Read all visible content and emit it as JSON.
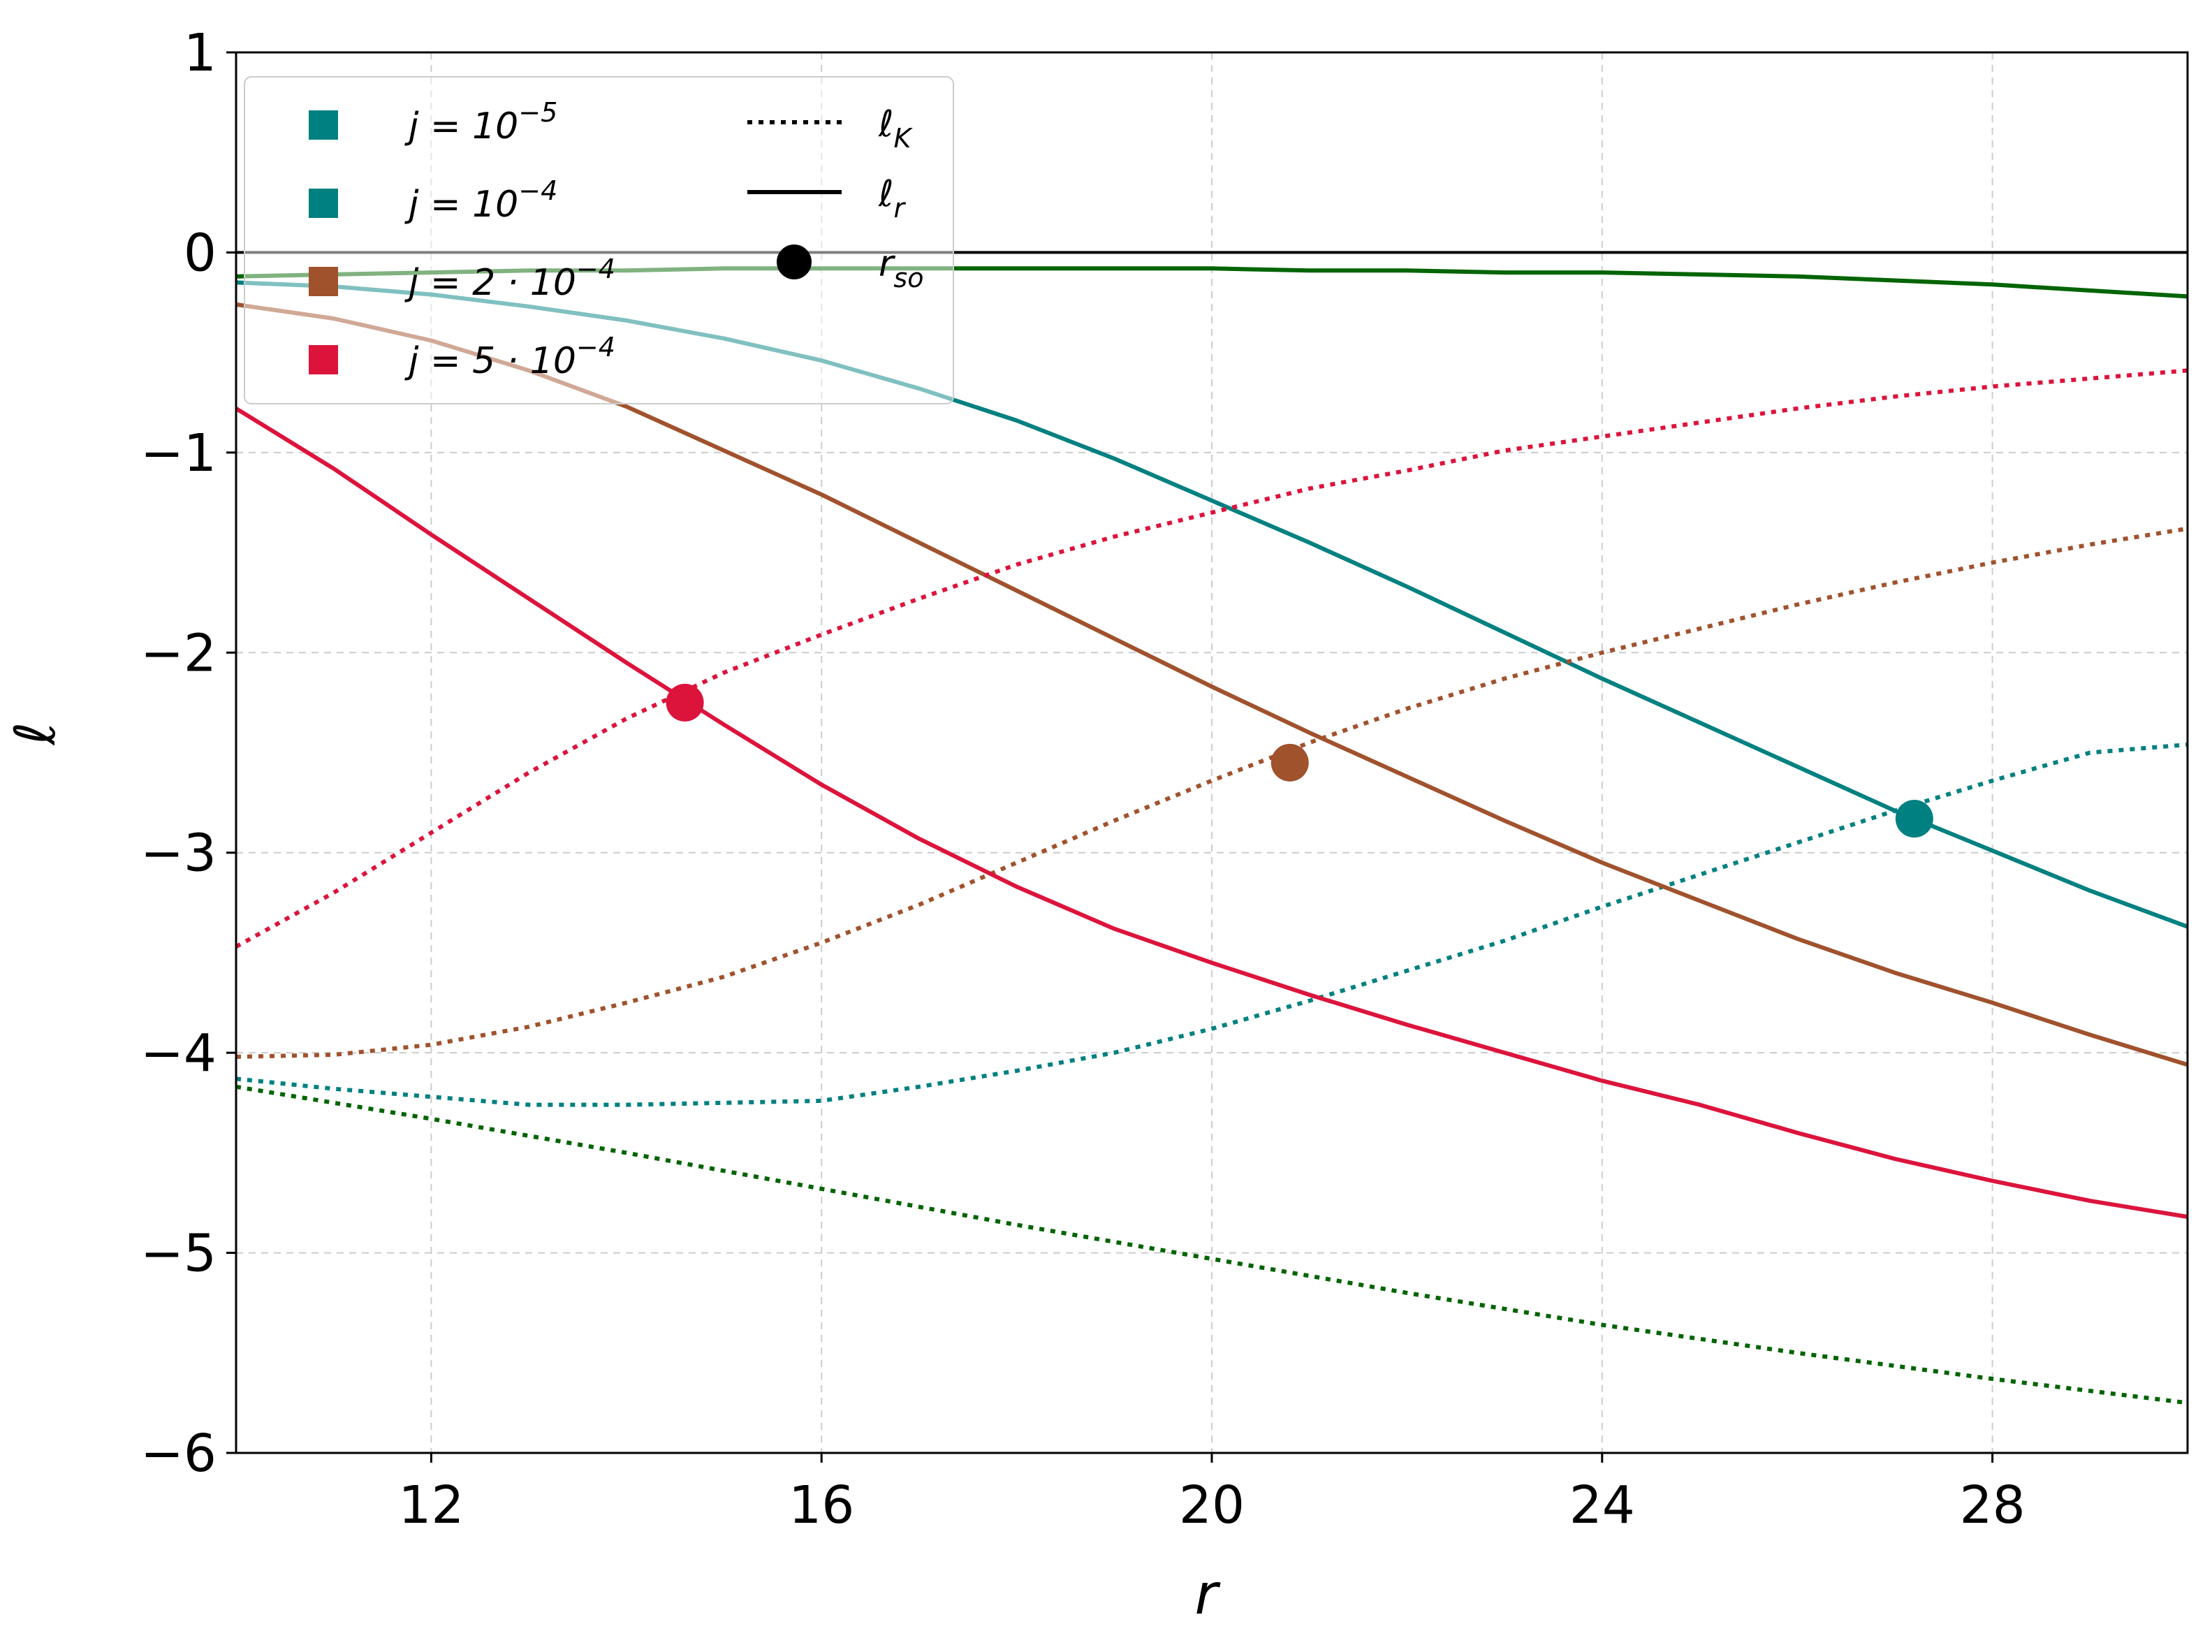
{
  "chart_data": {
    "type": "line",
    "xlabel": "r",
    "ylabel": "ℓ",
    "xlim": [
      10,
      30
    ],
    "ylim": [
      -6,
      1
    ],
    "xticks": [
      12,
      16,
      20,
      24,
      28
    ],
    "yticks": [
      1,
      0,
      -1,
      -2,
      -3,
      -4,
      -5,
      -6
    ],
    "xtick_labels": [
      "12",
      "16",
      "20",
      "24",
      "28"
    ],
    "ytick_labels": [
      "1",
      "0",
      "−1",
      "−2",
      "−3",
      "−4",
      "−5",
      "−6"
    ],
    "grid": true,
    "zero_line": true,
    "legend_position": "top-left",
    "legend_series": [
      {
        "label": "j = 10",
        "exp": "−5",
        "color": "#008080"
      },
      {
        "label": "j = 10",
        "exp": "−4",
        "color": "#008080"
      },
      {
        "label": "j = 2 · 10",
        "exp": "−4",
        "color": "#a0522d"
      },
      {
        "label": "j = 5 · 10",
        "exp": "−4",
        "color": "#dc143c"
      }
    ],
    "legend_styles": [
      {
        "style": "dotted",
        "label": "ℓ",
        "sub": "K"
      },
      {
        "style": "solid",
        "label": "ℓ",
        "sub": "r"
      },
      {
        "style": "marker",
        "label": "r",
        "sub": "so"
      }
    ],
    "series": [
      {
        "color": "#006400",
        "style": "solid",
        "x": [
          10,
          11,
          12,
          13,
          14,
          15,
          16,
          17,
          18,
          19,
          20,
          21,
          22,
          23,
          24,
          25,
          26,
          27,
          28,
          29,
          30
        ],
        "y": [
          -0.12,
          -0.11,
          -0.1,
          -0.09,
          -0.09,
          -0.08,
          -0.08,
          -0.08,
          -0.08,
          -0.08,
          -0.08,
          -0.09,
          -0.09,
          -0.1,
          -0.1,
          -0.11,
          -0.12,
          -0.14,
          -0.16,
          -0.19,
          -0.22
        ]
      },
      {
        "color": "#006400",
        "style": "dotted",
        "x": [
          10,
          12,
          14,
          16,
          18,
          20,
          22,
          24,
          26,
          28,
          30
        ],
        "y": [
          -4.17,
          -4.33,
          -4.5,
          -4.68,
          -4.86,
          -5.03,
          -5.2,
          -5.36,
          -5.5,
          -5.63,
          -5.75
        ]
      },
      {
        "color": "#008080",
        "style": "solid",
        "x": [
          10,
          11,
          12,
          13,
          14,
          15,
          16,
          17,
          18,
          19,
          20,
          21,
          22,
          23,
          24,
          25,
          26,
          27,
          28,
          29,
          30
        ],
        "y": [
          -0.15,
          -0.17,
          -0.21,
          -0.27,
          -0.34,
          -0.43,
          -0.54,
          -0.68,
          -0.84,
          -1.03,
          -1.24,
          -1.45,
          -1.67,
          -1.9,
          -2.13,
          -2.35,
          -2.57,
          -2.79,
          -2.99,
          -3.19,
          -3.37
        ]
      },
      {
        "color": "#008080",
        "style": "dotted",
        "x": [
          10,
          11,
          12,
          13,
          14,
          15,
          16,
          17,
          18,
          19,
          20,
          21,
          22,
          23,
          24,
          25,
          26,
          27,
          28,
          29,
          30
        ],
        "y": [
          -4.13,
          -4.18,
          -4.22,
          -4.26,
          -4.26,
          -4.25,
          -4.24,
          -4.17,
          -4.09,
          -4,
          -3.88,
          -3.74,
          -3.59,
          -3.44,
          -3.27,
          -3.11,
          -2.95,
          -2.79,
          -2.64,
          -2.5,
          -2.46
        ]
      },
      {
        "color": "#a0522d",
        "style": "solid",
        "x": [
          10,
          11,
          12,
          13,
          14,
          15,
          16,
          17,
          18,
          19,
          20,
          21,
          22,
          23,
          24,
          25,
          26,
          27,
          28,
          29,
          30
        ],
        "y": [
          -0.26,
          -0.33,
          -0.44,
          -0.59,
          -0.77,
          -0.99,
          -1.21,
          -1.45,
          -1.69,
          -1.93,
          -2.17,
          -2.4,
          -2.62,
          -2.84,
          -3.05,
          -3.24,
          -3.43,
          -3.6,
          -3.75,
          -3.91,
          -4.06
        ]
      },
      {
        "color": "#a0522d",
        "style": "dotted",
        "x": [
          10,
          11,
          12,
          13,
          14,
          15,
          16,
          17,
          18,
          19,
          20,
          21,
          22,
          23,
          24,
          25,
          26,
          27,
          28,
          29,
          30
        ],
        "y": [
          -4.02,
          -4.01,
          -3.96,
          -3.87,
          -3.75,
          -3.62,
          -3.45,
          -3.26,
          -3.05,
          -2.84,
          -2.64,
          -2.45,
          -2.28,
          -2.13,
          -2,
          -1.88,
          -1.76,
          -1.65,
          -1.55,
          -1.46,
          -1.38
        ]
      },
      {
        "color": "#dc143c",
        "style": "solid",
        "x": [
          10,
          11,
          12,
          13,
          14,
          15,
          16,
          17,
          18,
          19,
          20,
          21,
          22,
          23,
          24,
          25,
          26,
          27,
          28,
          29,
          30
        ],
        "y": [
          -0.78,
          -1.08,
          -1.41,
          -1.73,
          -2.05,
          -2.36,
          -2.66,
          -2.93,
          -3.17,
          -3.38,
          -3.55,
          -3.71,
          -3.86,
          -4,
          -4.14,
          -4.26,
          -4.4,
          -4.53,
          -4.64,
          -4.74,
          -4.82
        ]
      },
      {
        "color": "#dc143c",
        "style": "dotted",
        "x": [
          10,
          11,
          12,
          13,
          14,
          15,
          16,
          17,
          18,
          19,
          20,
          21,
          22,
          23,
          24,
          25,
          26,
          27,
          28,
          29,
          30
        ],
        "y": [
          -3.47,
          -3.2,
          -2.9,
          -2.6,
          -2.33,
          -2.1,
          -1.91,
          -1.73,
          -1.56,
          -1.42,
          -1.3,
          -1.18,
          -1.09,
          -0.99,
          -0.92,
          -0.85,
          -0.78,
          -0.72,
          -0.67,
          -0.63,
          -0.59
        ]
      }
    ],
    "markers": [
      {
        "x": 14.6,
        "y": -2.25,
        "color": "#dc143c"
      },
      {
        "x": 20.8,
        "y": -2.55,
        "color": "#a0522d"
      },
      {
        "x": 27.2,
        "y": -2.83,
        "color": "#008080"
      }
    ]
  }
}
